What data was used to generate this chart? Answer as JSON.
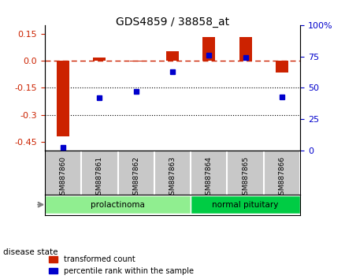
{
  "title": "GDS4859 / 38858_at",
  "samples": [
    "GSM887860",
    "GSM887861",
    "GSM887862",
    "GSM887863",
    "GSM887864",
    "GSM887865",
    "GSM887866"
  ],
  "red_values": [
    -0.42,
    0.02,
    -0.005,
    0.055,
    0.135,
    0.135,
    -0.065
  ],
  "blue_values": [
    2.5,
    42.0,
    47.0,
    63.0,
    76.0,
    74.0,
    43.0
  ],
  "ylim_left": [
    -0.5,
    0.2
  ],
  "ylim_right": [
    0,
    100
  ],
  "yticks_left": [
    0.15,
    0.0,
    -0.15,
    -0.3,
    -0.45
  ],
  "yticks_right": [
    100,
    75,
    50,
    25,
    0
  ],
  "hlines": [
    -0.15,
    -0.3
  ],
  "disease_groups": [
    {
      "label": "prolactinoma",
      "samples": [
        0,
        1,
        2,
        3
      ],
      "color": "#90EE90"
    },
    {
      "label": "normal pituitary",
      "samples": [
        4,
        5,
        6
      ],
      "color": "#00CC44"
    }
  ],
  "disease_state_label": "disease state",
  "legend_red": "transformed count",
  "legend_blue": "percentile rank within the sample",
  "bar_color": "#CC2200",
  "dot_color": "#0000CC",
  "dashed_color": "#CC2200",
  "background_plot": "#FFFFFF",
  "background_label": "#C8C8C8"
}
